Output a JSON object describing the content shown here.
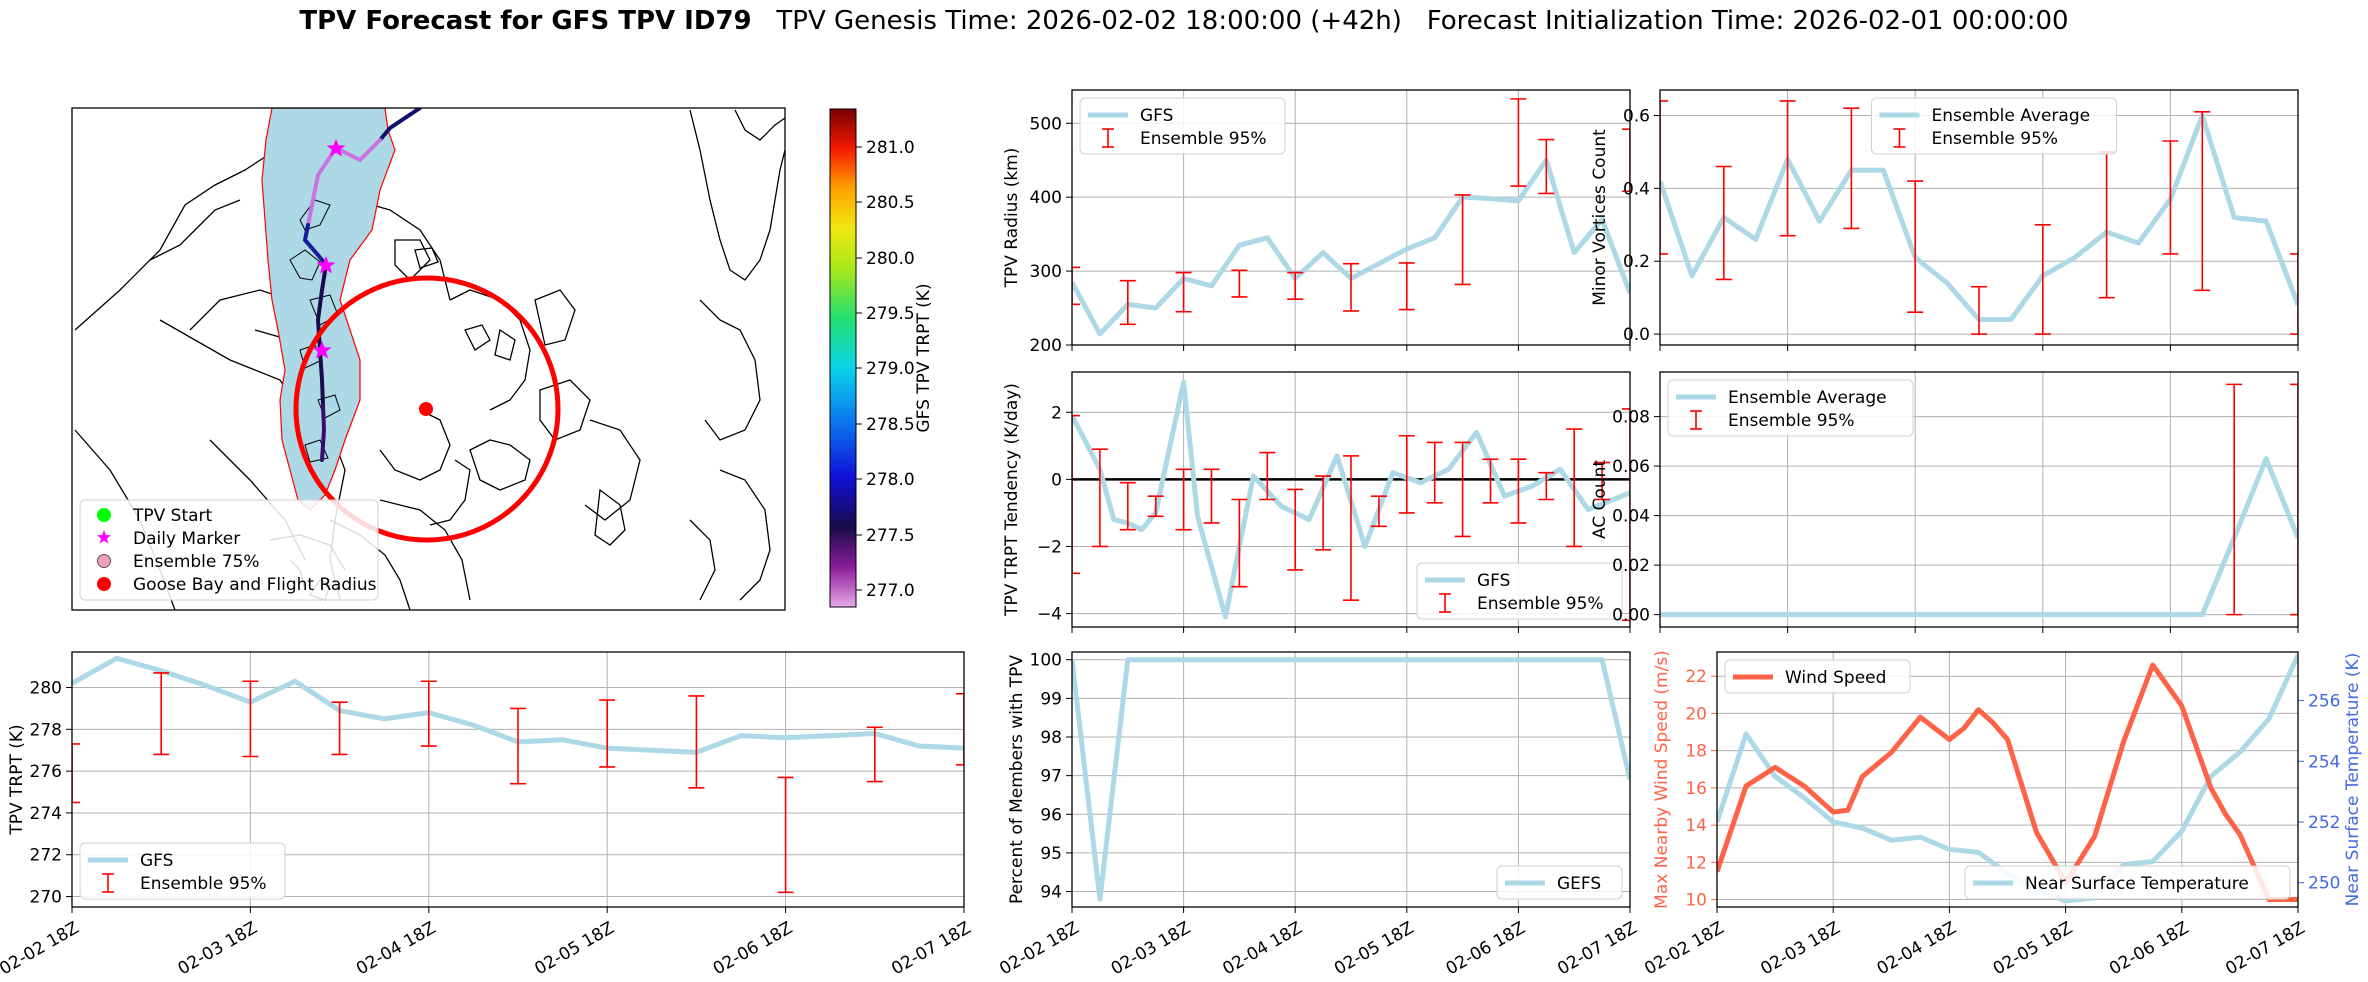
{
  "figure": {
    "title_bold": "TPV Forecast for GFS TPV ID79",
    "title_rest": "TPV Genesis Time: 2026-02-02 18:00:00 (+42h)   Forecast Initialization Time: 2026-02-01 00:00:00",
    "x_ticks": [
      "02-02 18Z",
      "02-03 18Z",
      "02-04 18Z",
      "02-05 18Z",
      "02-06 18Z",
      "02-07 18Z"
    ]
  },
  "map": {
    "legend": [
      "TPV Start",
      "Daily Marker",
      "Ensemble 75%",
      "Goose Bay and Flight Radius"
    ],
    "colorbar_label": "GFS TPV TRPT (K)",
    "colorbar_ticks": [
      "281.0",
      "280.5",
      "280.0",
      "279.5",
      "279.0",
      "278.5",
      "278.0",
      "277.5",
      "277.0"
    ]
  },
  "colors": {
    "series": "#add8e6",
    "errorbar": "#ff0000",
    "wind": "#ff6347",
    "temp_axis": "#4169e1"
  },
  "chart_data": [
    {
      "id": "radius",
      "type": "line",
      "ylabel": "TPV Radius (km)",
      "ylim": [
        200,
        545
      ],
      "yticks": [
        200,
        300,
        400,
        500
      ],
      "xlim": [
        0,
        120
      ],
      "legend": [
        "GFS",
        "Ensemble 95%"
      ],
      "legend_loc": "top-left",
      "series": [
        {
          "name": "GFS",
          "x": [
            0,
            6,
            12,
            18,
            24,
            30,
            36,
            42,
            48,
            54,
            60,
            66,
            72,
            78,
            84,
            90,
            96,
            102,
            108,
            114,
            120
          ],
          "y": [
            285,
            215,
            255,
            250,
            290,
            280,
            335,
            345,
            290,
            325,
            290,
            310,
            330,
            345,
            400,
            398,
            395,
            450,
            325,
            370,
            270
          ]
        }
      ],
      "error_bars": {
        "name": "Ensemble 95%",
        "x": [
          0,
          12,
          24,
          36,
          48,
          60,
          72,
          84,
          96,
          102,
          120
        ],
        "low": [
          255,
          228,
          245,
          265,
          262,
          246,
          248,
          282,
          415,
          405,
          408
        ],
        "high": [
          305,
          287,
          298,
          301,
          298,
          310,
          311,
          403,
          533,
          478,
          492
        ]
      }
    },
    {
      "id": "minor",
      "type": "line",
      "ylabel": "Minor Vortices Count",
      "ylim": [
        -0.03,
        0.67
      ],
      "yticks": [
        0.0,
        0.2,
        0.4,
        0.6
      ],
      "xlim": [
        0,
        120
      ],
      "legend": [
        "Ensemble Average",
        "Ensemble 95%"
      ],
      "legend_loc": "top-center",
      "series": [
        {
          "name": "Ensemble Average",
          "x": [
            0,
            6,
            12,
            18,
            24,
            30,
            36,
            42,
            48,
            54,
            60,
            66,
            72,
            78,
            84,
            90,
            96,
            102,
            108,
            114,
            120
          ],
          "y": [
            0.42,
            0.16,
            0.32,
            0.26,
            0.48,
            0.31,
            0.45,
            0.45,
            0.21,
            0.14,
            0.04,
            0.04,
            0.16,
            0.21,
            0.28,
            0.25,
            0.37,
            0.6,
            0.32,
            0.31,
            0.08
          ]
        }
      ],
      "error_bars": {
        "name": "Ensemble 95%",
        "x": [
          0,
          12,
          24,
          36,
          48,
          60,
          72,
          84,
          96,
          102,
          120
        ],
        "low": [
          0.22,
          0.15,
          0.27,
          0.29,
          0.06,
          0.0,
          0.0,
          0.1,
          0.22,
          0.12,
          0.0
        ],
        "high": [
          0.64,
          0.46,
          0.64,
          0.62,
          0.42,
          0.13,
          0.3,
          0.5,
          0.53,
          0.61,
          0.22
        ]
      }
    },
    {
      "id": "tendency",
      "type": "line",
      "ylabel": "TPV TRPT Tendency (K/day)",
      "ylim": [
        -4.4,
        3.2
      ],
      "yticks": [
        -4,
        -2,
        0,
        2
      ],
      "xlim": [
        0,
        120
      ],
      "zero_line": true,
      "legend": [
        "GFS",
        "Ensemble 95%"
      ],
      "legend_loc": "bottom-right",
      "series": [
        {
          "name": "GFS",
          "x": [
            0,
            6,
            9,
            12,
            15,
            18,
            24,
            27,
            33,
            39,
            45,
            51,
            57,
            63,
            69,
            75,
            81,
            87,
            93,
            99,
            105,
            111,
            120
          ],
          "y": [
            1.9,
            0.3,
            -1.2,
            -1.3,
            -1.5,
            -1.0,
            2.9,
            -1.1,
            -4.1,
            0.1,
            -0.8,
            -1.2,
            0.7,
            -2.0,
            0.2,
            -0.1,
            0.3,
            1.4,
            -0.5,
            -0.2,
            0.3,
            -0.9,
            -0.4
          ]
        }
      ],
      "error_bars": {
        "name": "Ensemble 95%",
        "x": [
          0,
          6,
          12,
          18,
          24,
          30,
          36,
          42,
          48,
          54,
          60,
          66,
          72,
          78,
          84,
          90,
          96,
          102,
          108,
          114,
          120
        ],
        "low": [
          -2.8,
          -2.0,
          -1.5,
          -1.1,
          -1.5,
          -1.3,
          -3.2,
          -0.6,
          -2.7,
          -2.1,
          -3.6,
          -1.4,
          -1.0,
          -0.7,
          -1.7,
          -0.7,
          -1.3,
          -0.6,
          -2.0,
          -0.6,
          -4.2
        ],
        "high": [
          1.9,
          0.9,
          -0.1,
          -0.5,
          0.3,
          0.3,
          -0.6,
          0.8,
          -0.3,
          0.1,
          0.7,
          -0.5,
          1.3,
          1.1,
          1.1,
          0.6,
          0.6,
          0.2,
          1.5,
          0.5,
          2.1
        ]
      }
    },
    {
      "id": "ac",
      "type": "line",
      "ylabel": "AC Count",
      "ylim": [
        -0.005,
        0.098
      ],
      "yticks": [
        0.0,
        0.02,
        0.04,
        0.06,
        0.08
      ],
      "xlim": [
        0,
        120
      ],
      "legend": [
        "Ensemble Average",
        "Ensemble 95%"
      ],
      "legend_loc": "top-left",
      "series": [
        {
          "name": "Ensemble Average",
          "x": [
            0,
            6,
            12,
            18,
            24,
            30,
            36,
            42,
            48,
            54,
            60,
            66,
            72,
            78,
            84,
            90,
            96,
            102,
            108,
            114,
            120
          ],
          "y": [
            0,
            0,
            0,
            0,
            0,
            0,
            0,
            0,
            0,
            0,
            0,
            0,
            0,
            0,
            0,
            0,
            0,
            0,
            0.031,
            0.063,
            0.031
          ]
        }
      ],
      "error_bars": {
        "name": "Ensemble 95%",
        "x": [
          108,
          120
        ],
        "low": [
          0.0,
          0.0
        ],
        "high": [
          0.093,
          0.093
        ]
      }
    },
    {
      "id": "trpt",
      "type": "line",
      "ylabel": "TPV TRPT (K)",
      "ylim": [
        269.5,
        281.7
      ],
      "yticks": [
        270,
        272,
        274,
        276,
        278,
        280
      ],
      "xlim": [
        0,
        120
      ],
      "legend": [
        "GFS",
        "Ensemble 95%"
      ],
      "legend_loc": "bottom-left",
      "series": [
        {
          "name": "GFS",
          "x": [
            0,
            6,
            12,
            18,
            24,
            30,
            36,
            42,
            48,
            54,
            60,
            66,
            72,
            78,
            84,
            90,
            96,
            102,
            108,
            114,
            120
          ],
          "y": [
            280.2,
            281.4,
            280.8,
            280.1,
            279.3,
            280.3,
            278.9,
            278.5,
            278.8,
            278.2,
            277.4,
            277.5,
            277.1,
            277.0,
            276.9,
            277.7,
            277.6,
            277.7,
            277.8,
            277.2,
            277.1
          ]
        }
      ],
      "error_bars": {
        "name": "Ensemble 95%",
        "x": [
          0,
          12,
          24,
          36,
          48,
          60,
          72,
          84,
          96,
          108,
          120
        ],
        "low": [
          274.5,
          276.8,
          276.7,
          276.8,
          277.2,
          275.4,
          276.2,
          275.2,
          270.2,
          275.5,
          276.3
        ],
        "high": [
          277.3,
          280.7,
          280.3,
          279.3,
          280.3,
          279.0,
          279.4,
          279.6,
          275.7,
          278.1,
          279.7
        ]
      }
    },
    {
      "id": "members",
      "type": "line",
      "ylabel": "Percent of Members with TPV",
      "ylim": [
        93.6,
        100.2
      ],
      "yticks": [
        94,
        95,
        96,
        97,
        98,
        99,
        100
      ],
      "xlim": [
        0,
        120
      ],
      "legend": [
        "GEFS"
      ],
      "legend_loc": "bottom-right",
      "series": [
        {
          "name": "GEFS",
          "x": [
            0,
            6,
            12,
            114,
            120
          ],
          "y": [
            100,
            93.8,
            100,
            100,
            96.9
          ]
        }
      ]
    },
    {
      "id": "wind",
      "type": "line",
      "ylabel": "Max Nearby Wind Speed (m/s)",
      "ylim": [
        9.6,
        23.3
      ],
      "yticks": [
        10,
        12,
        14,
        16,
        18,
        20,
        22
      ],
      "xlim": [
        0,
        120
      ],
      "legend": [
        "Wind Speed"
      ],
      "legend_loc": "top-left",
      "series": [
        {
          "name": "Wind Speed",
          "x": [
            0,
            6,
            9,
            12,
            18,
            24,
            27,
            30,
            36,
            42,
            48,
            51,
            54,
            57,
            60,
            66,
            72,
            78,
            84,
            90,
            96,
            102,
            105,
            108,
            114,
            120
          ],
          "y": [
            11.5,
            16.1,
            16.6,
            17.1,
            16.1,
            14.7,
            14.8,
            16.6,
            17.9,
            19.8,
            18.6,
            19.2,
            20.2,
            19.5,
            18.6,
            13.6,
            10.9,
            13.4,
            18.5,
            22.6,
            20.4,
            16.0,
            14.6,
            13.5,
            10.0,
            10.0
          ]
        }
      ],
      "secondary": {
        "ylabel": "Near Surface Temperature (K)",
        "ylim": [
          249.2,
          257.6
        ],
        "yticks": [
          250,
          252,
          254,
          256
        ],
        "legend": [
          "Near Surface Temperature"
        ],
        "legend_loc": "bottom-right",
        "series": [
          {
            "name": "Near Surface Temperature",
            "x": [
              0,
              6,
              12,
              18,
              24,
              30,
              36,
              42,
              48,
              54,
              60,
              66,
              72,
              78,
              84,
              90,
              96,
              102,
              108,
              114,
              120
            ],
            "y": [
              252.0,
              254.9,
              253.5,
              252.8,
              252.0,
              251.8,
              251.4,
              251.5,
              251.1,
              251.0,
              250.3,
              249.8,
              249.4,
              249.5,
              250.6,
              250.7,
              251.7,
              253.5,
              254.3,
              255.4,
              257.5
            ]
          }
        ]
      }
    }
  ]
}
